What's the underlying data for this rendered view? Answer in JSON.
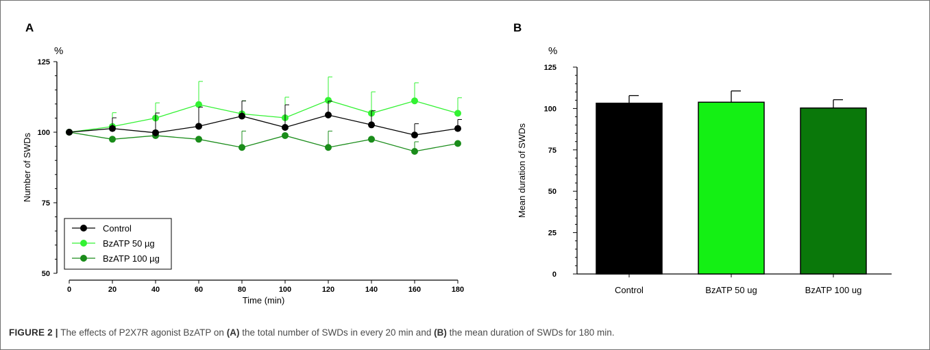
{
  "chart_data": [
    {
      "panel_label": "A",
      "type": "line",
      "unit_label": "%",
      "xlabel": "Time (min)",
      "ylabel": "Number of SWDs",
      "xlim": [
        0,
        180
      ],
      "ylim": [
        50,
        125
      ],
      "x_ticks": [
        0,
        20,
        40,
        60,
        80,
        100,
        120,
        140,
        160,
        180
      ],
      "y_ticks": [
        50,
        75,
        100,
        125
      ],
      "grid": false,
      "legend_position": "bottom-left",
      "x": [
        0,
        20,
        40,
        60,
        80,
        100,
        120,
        140,
        160,
        180
      ],
      "series": [
        {
          "name": "Control",
          "color": "#000000",
          "values": [
            100,
            101.3,
            99.8,
            102.1,
            105.7,
            101.7,
            106.1,
            102.6,
            99.0,
            101.3
          ],
          "errors": [
            0,
            3.8,
            7.0,
            6.8,
            5.4,
            8.0,
            4.9,
            5.0,
            4.0,
            3.2
          ]
        },
        {
          "name": "BzATP 50 µg",
          "color": "#33f233",
          "values": [
            100,
            102.0,
            105.0,
            109.8,
            106.5,
            105.1,
            111.3,
            106.7,
            111.1,
            106.7
          ],
          "errors": [
            0,
            4.9,
            5.4,
            8.2,
            4.6,
            7.3,
            8.3,
            7.6,
            6.4,
            5.5
          ]
        },
        {
          "name": "BzATP 100 µg",
          "color": "#1a8c1a",
          "values": [
            100,
            97.5,
            98.8,
            97.5,
            94.6,
            98.8,
            94.6,
            97.5,
            93.2,
            96.0
          ],
          "errors": [
            0,
            0,
            0,
            0,
            5.8,
            0,
            5.8,
            0,
            3.4,
            0
          ]
        }
      ]
    },
    {
      "panel_label": "B",
      "type": "bar",
      "unit_label": "%",
      "ylabel": "Mean duration of SWDs",
      "ylim": [
        0,
        125
      ],
      "y_ticks": [
        0,
        25,
        50,
        75,
        100,
        125
      ],
      "grid": false,
      "categories": [
        "Control",
        "BzATP 50 ug",
        "BzATP 100 ug"
      ],
      "values": [
        103.2,
        103.8,
        100.3
      ],
      "errors": [
        4.6,
        6.8,
        5.0
      ],
      "colors": [
        "#000000",
        "#14f014",
        "#0a780a"
      ]
    }
  ],
  "caption": {
    "figure_label": "FIGURE 2 |",
    "text_1": " The effects of P2X7R agonist BzATP on ",
    "ref_a": "(A)",
    "text_2": " the total number of SWDs in every 20 min and ",
    "ref_b": "(B)",
    "text_3": " the mean duration of SWDs for 180 min."
  }
}
